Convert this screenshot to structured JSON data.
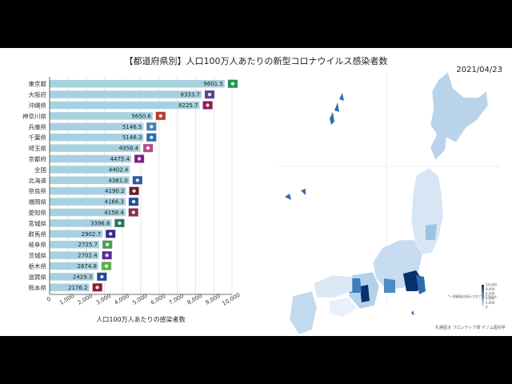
{
  "title": "【都道府県別】人口100万人あたりの新型コロナウイルス感染者数",
  "date": "2021/04/23",
  "credit": "札幌医大 フロンティア研 ゲノム医科学",
  "legend_note": "*一部離島は表示されておりません",
  "colors": {
    "bar": "#a8d1e0",
    "map_dark": "#08306b",
    "map_light": "#eef3fa",
    "grid": "#e6e6e6",
    "axis": "#444444"
  },
  "chart_data": [
    {
      "type": "bar",
      "orientation": "horizontal",
      "categories": [
        "東京都",
        "大阪府",
        "沖縄県",
        "神奈川県",
        "兵庫県",
        "千葉県",
        "埼玉県",
        "京都府",
        "全国",
        "北海道",
        "奈良県",
        "福岡県",
        "愛知県",
        "宮城県",
        "群馬県",
        "岐阜県",
        "茨城県",
        "栃木県",
        "滋賀県",
        "熊本県"
      ],
      "values": [
        9601.5,
        8333.7,
        8225.7,
        5650.6,
        5146.5,
        5146.3,
        4958.4,
        4475.4,
        4402.4,
        4381.0,
        4190.2,
        4166.3,
        4158.4,
        3396.8,
        2902.7,
        2725.7,
        2702.4,
        2674.8,
        2429.3,
        2176.2
      ],
      "value_labels": [
        "9601.5",
        "8333.7",
        "8225.7",
        "5650.6",
        "5146.5",
        "5146.3",
        "4958.4",
        "4475.4",
        "4402.4",
        "4381.0",
        "4190.2",
        "4166.3",
        "4158.4",
        "3396.8",
        "2902.7",
        "2725.7",
        "2702.4",
        "2674.8",
        "2429.3",
        "2176.2"
      ],
      "flag_icons": [
        "tokyo-emblem-icon",
        "osaka-flag-icon",
        "okinawa-flag-icon",
        "kanagawa-emblem-icon",
        "hyogo-flag-icon",
        "chiba-flag-icon",
        "saitama-emblem-icon",
        "kyoto-flag-icon",
        "",
        "hokkaido-flag-icon",
        "nara-flag-icon",
        "fukuoka-flag-icon",
        "aichi-flag-icon",
        "miyagi-flag-icon",
        "gunma-flag-icon",
        "gifu-emblem-icon",
        "ibaraki-flag-icon",
        "tochigi-flag-icon",
        "shiga-flag-icon",
        "kumamoto-flag-icon"
      ],
      "xlim": [
        0,
        10000
      ],
      "x_ticks": [
        0,
        1000,
        2000,
        3000,
        4000,
        5000,
        6000,
        7000,
        8000,
        9000,
        10000
      ],
      "x_tick_labels": [
        "0",
        "1,000",
        "2,000",
        "3,000",
        "4,000",
        "5,000",
        "6,000",
        "7,000",
        "8,000",
        "9,000",
        "10,000"
      ],
      "xlabel": "人口100万人あたりの感染者数",
      "grid": true
    },
    {
      "type": "heatmap",
      "subtype": "choropleth-map",
      "legend_ticks": [
        "10,000",
        "8,000",
        "6,000",
        "4,000",
        "2,000",
        "0"
      ],
      "legend_range": [
        0,
        10000
      ]
    }
  ]
}
